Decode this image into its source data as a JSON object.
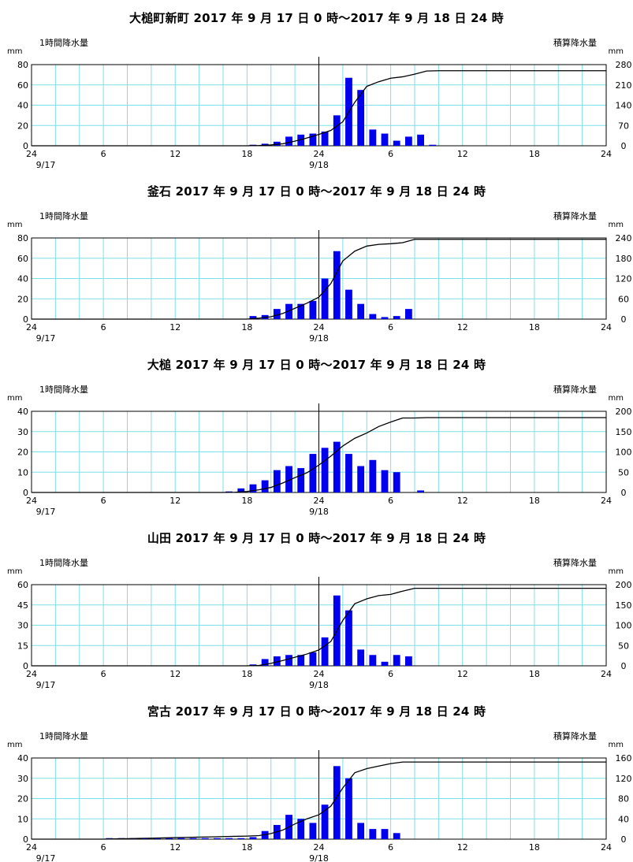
{
  "chart_data": [
    {
      "type": "bar",
      "title": "大槌町新町 2017 年 9 月 17 日 0 時～2017 年 9 月 18 日 24 時",
      "left_axis_label": "1時間降水量",
      "right_axis_label": "積算降水量",
      "left_unit": "mm",
      "right_unit": "mm",
      "ylim": [
        0,
        80
      ],
      "y2lim": [
        0,
        280
      ],
      "yticks": [
        0,
        20,
        40,
        60,
        80
      ],
      "y2ticks": [
        0,
        70,
        140,
        210,
        280
      ],
      "xtick_labels": [
        "24",
        "6",
        "12",
        "18",
        "24",
        "6",
        "12",
        "18",
        "24"
      ],
      "date_labels": [
        "9/17",
        "9/18"
      ],
      "series": [
        {
          "name": "1時間降水量",
          "values": [
            0,
            0,
            0,
            0,
            0,
            0,
            0,
            0,
            0,
            0,
            0,
            0,
            0,
            0,
            0,
            0,
            0,
            0,
            1,
            2,
            4,
            9,
            11,
            12,
            14,
            30,
            67,
            55,
            16,
            12,
            5,
            9,
            11,
            1,
            0,
            0,
            0,
            0,
            0,
            0,
            0,
            0,
            0,
            0,
            0,
            0,
            0,
            0
          ]
        },
        {
          "name": "積算降水量",
          "values": [
            0,
            0,
            0,
            0,
            0,
            0,
            0,
            0,
            0,
            0,
            0,
            0,
            0,
            0,
            0,
            0,
            0,
            0,
            1,
            3,
            7,
            16,
            27,
            39,
            53,
            83,
            150,
            205,
            221,
            233,
            238,
            247,
            258,
            259,
            259,
            259,
            259,
            259,
            259,
            259,
            259,
            259,
            259,
            259,
            259,
            259,
            259,
            259
          ]
        }
      ]
    },
    {
      "type": "bar",
      "title": "釜石 2017 年 9 月 17 日 0 時～2017 年 9 月 18 日 24 時",
      "left_axis_label": "1時間降水量",
      "right_axis_label": "積算降水量",
      "left_unit": "mm",
      "right_unit": "mm",
      "ylim": [
        0,
        80
      ],
      "y2lim": [
        0,
        240
      ],
      "yticks": [
        0,
        20,
        40,
        60,
        80
      ],
      "y2ticks": [
        0,
        60,
        120,
        180,
        240
      ],
      "xtick_labels": [
        "24",
        "6",
        "12",
        "18",
        "24",
        "6",
        "12",
        "18",
        "24"
      ],
      "date_labels": [
        "9/17",
        "9/18"
      ],
      "series": [
        {
          "name": "1時間降水量",
          "values": [
            0,
            0,
            0,
            0,
            0,
            0,
            0,
            0,
            0,
            0,
            0,
            0,
            0,
            0,
            0,
            0,
            0,
            0,
            3,
            4,
            10,
            15,
            15,
            18,
            40,
            67,
            29,
            15,
            5,
            2,
            3,
            10,
            0,
            0,
            0,
            0,
            0,
            0,
            0,
            0,
            0,
            0,
            0,
            0,
            0,
            0,
            0,
            0
          ]
        },
        {
          "name": "積算降水量",
          "values": [
            0,
            0,
            0,
            0,
            0,
            0,
            0,
            0,
            0,
            0,
            0,
            0,
            0,
            0,
            0,
            0,
            0,
            0,
            3,
            7,
            17,
            32,
            47,
            65,
            105,
            172,
            201,
            216,
            221,
            223,
            226,
            236,
            236,
            236,
            236,
            236,
            236,
            236,
            236,
            236,
            236,
            236,
            236,
            236,
            236,
            236,
            236,
            236
          ]
        }
      ]
    },
    {
      "type": "bar",
      "title": "大槌 2017 年 9 月 17 日 0 時～2017 年 9 月 18 日 24 時",
      "left_axis_label": "1時間降水量",
      "right_axis_label": "積算降水量",
      "left_unit": "mm",
      "right_unit": "mm",
      "ylim": [
        0,
        40
      ],
      "y2lim": [
        0,
        200
      ],
      "yticks": [
        0,
        10,
        20,
        30,
        40
      ],
      "y2ticks": [
        0,
        50,
        100,
        150,
        200
      ],
      "xtick_labels": [
        "24",
        "6",
        "12",
        "18",
        "24",
        "6",
        "12",
        "18",
        "24"
      ],
      "date_labels": [
        "9/17",
        "9/18"
      ],
      "series": [
        {
          "name": "1時間降水量",
          "values": [
            0,
            0,
            0,
            0,
            0,
            0,
            0,
            0,
            0,
            0,
            0,
            0,
            0,
            0,
            0,
            0,
            0.5,
            2,
            4,
            6,
            11,
            13,
            12,
            19,
            22,
            25,
            19,
            13,
            16,
            11,
            10,
            0,
            1,
            0,
            0,
            0,
            0,
            0,
            0,
            0,
            0,
            0,
            0,
            0,
            0,
            0,
            0,
            0
          ]
        },
        {
          "name": "積算降水量",
          "values": [
            0,
            0,
            0,
            0,
            0,
            0,
            0,
            0,
            0,
            0,
            0,
            0,
            0,
            0,
            0,
            0,
            0.5,
            2.5,
            6.5,
            12.5,
            23.5,
            36.5,
            48.5,
            67.5,
            89.5,
            114.5,
            133.5,
            146.5,
            162.5,
            173.5,
            183.5,
            183.5,
            184.5,
            184.5,
            184.5,
            184.5,
            184.5,
            184.5,
            184.5,
            184.5,
            184.5,
            184.5,
            184.5,
            184.5,
            184.5,
            184.5,
            184.5,
            184.5
          ]
        }
      ]
    },
    {
      "type": "bar",
      "title": "山田 2017 年 9 月 17 日 0 時～2017 年 9 月 18 日 24 時",
      "left_axis_label": "1時間降水量",
      "right_axis_label": "積算降水量",
      "left_unit": "mm",
      "right_unit": "mm",
      "ylim": [
        0,
        60
      ],
      "y2lim": [
        0,
        200
      ],
      "yticks": [
        0,
        15,
        30,
        45,
        60
      ],
      "y2ticks": [
        0,
        50,
        100,
        150,
        200
      ],
      "xtick_labels": [
        "24",
        "6",
        "12",
        "18",
        "24",
        "6",
        "12",
        "18",
        "24"
      ],
      "date_labels": [
        "9/17",
        "9/18"
      ],
      "series": [
        {
          "name": "1時間降水量",
          "values": [
            0,
            0,
            0,
            0,
            0,
            0,
            0,
            0,
            0,
            0,
            0,
            0,
            0,
            0,
            0,
            0,
            0,
            0,
            1,
            5,
            7,
            8,
            8,
            10,
            21,
            52,
            41,
            12,
            8,
            3,
            8,
            7,
            0,
            0,
            0,
            0,
            0,
            0,
            0,
            0,
            0,
            0,
            0,
            0,
            0,
            0,
            0,
            0
          ]
        },
        {
          "name": "積算降水量",
          "values": [
            0,
            0,
            0,
            0,
            0,
            0,
            0,
            0,
            0,
            0,
            0,
            0,
            0,
            0,
            0,
            0,
            0,
            0,
            1,
            6,
            13,
            21,
            29,
            39,
            60,
            112,
            153,
            165,
            173,
            176,
            184,
            191,
            191,
            191,
            191,
            191,
            191,
            191,
            191,
            191,
            191,
            191,
            191,
            191,
            191,
            191,
            191,
            191
          ]
        }
      ]
    },
    {
      "type": "bar",
      "title": "宮古 2017 年 9 月 17 日 0 時～2017 年 9 月 18 日 24 時",
      "left_axis_label": "1時間降水量",
      "right_axis_label": "積算降水量",
      "left_unit": "mm",
      "right_unit": "mm",
      "ylim": [
        0,
        40
      ],
      "y2lim": [
        0,
        160
      ],
      "yticks": [
        0,
        10,
        20,
        30,
        40
      ],
      "y2ticks": [
        0,
        40,
        80,
        120,
        160
      ],
      "xtick_labels": [
        "24",
        "6",
        "12",
        "18",
        "24",
        "6",
        "12",
        "18",
        "24"
      ],
      "date_labels": [
        "9/17",
        "9/18"
      ],
      "series": [
        {
          "name": "1時間降水量",
          "values": [
            0,
            0,
            0,
            0,
            0,
            0,
            0.5,
            0.5,
            0.5,
            0.5,
            0.5,
            0.5,
            0.5,
            0.5,
            0.5,
            0.5,
            0.5,
            0.5,
            1,
            4,
            7,
            12,
            10,
            8,
            17,
            36,
            30,
            8,
            5,
            5,
            3,
            0,
            0,
            0,
            0,
            0,
            0,
            0,
            0,
            0,
            0,
            0,
            0,
            0,
            0,
            0,
            0,
            0
          ]
        },
        {
          "name": "積算降水量",
          "values": [
            0,
            0,
            0,
            0,
            0,
            0,
            0.5,
            1,
            1.5,
            2,
            2.5,
            3,
            3.5,
            4,
            4.5,
            5,
            5.5,
            6,
            7,
            11,
            18,
            30,
            40,
            48,
            65,
            101,
            131,
            139,
            144,
            149,
            152,
            152,
            152,
            152,
            152,
            152,
            152,
            152,
            152,
            152,
            152,
            152,
            152,
            152,
            152,
            152,
            152,
            152
          ]
        }
      ]
    }
  ]
}
